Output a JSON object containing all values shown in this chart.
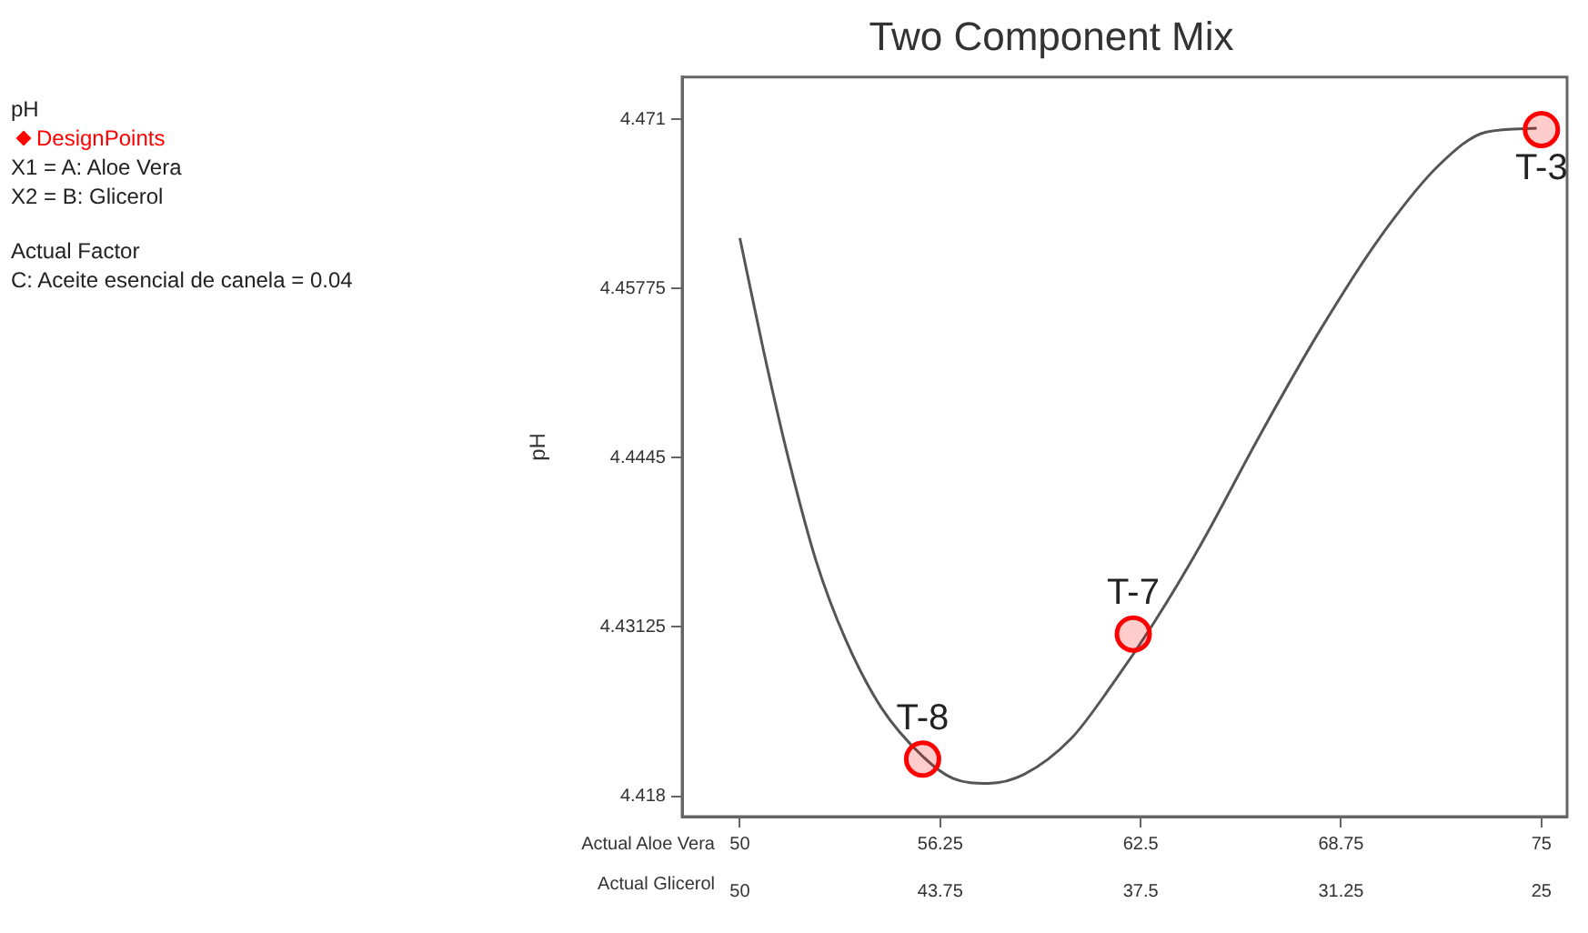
{
  "chart_data": {
    "type": "line",
    "title": "Two Component Mix",
    "xlabel": "Actual Aloe Vera",
    "x2label": "Actual Glicerol",
    "ylabel": "pH",
    "annotations": [
      "pH",
      "X1 = A: Aloe Vera",
      "X2 = B: Glicerol",
      "Actual Factor",
      "C: Aceite esencial de canela = 0.04",
      {
        "text": "T-8",
        "x": 55.7,
        "y": 4.4209
      },
      {
        "text": "T-7",
        "x": 62.27,
        "y": 4.4307
      },
      {
        "text": "T-3",
        "x": 75,
        "y": 4.4702
      }
    ],
    "xlim": [
      48.2,
      75.8
    ],
    "xticks": [
      50,
      56.25,
      62.5,
      68.75,
      75
    ],
    "x2lim": [
      51.8,
      24.2
    ],
    "x2ticks": [
      50,
      43.75,
      37.5,
      31.25,
      25
    ],
    "ylim": [
      4.4164,
      4.4743
    ],
    "yticks": [
      4.418,
      4.43125,
      4.4445,
      4.45775,
      4.471
    ],
    "grid": false,
    "legend": "left",
    "line_style": "solid",
    "series": [
      {
        "color": "#555555",
        "marker": "none",
        "x": [
          50,
          50.72,
          51.46,
          52.38,
          53.31,
          54.42,
          55.71,
          56.64,
          57.75,
          58.86,
          60.33,
          61.63,
          62.92,
          64.4,
          66.25,
          68.1,
          69.95,
          71.8,
          73.28,
          74.85
        ],
        "values": [
          4.4617,
          4.4531,
          4.445,
          4.4364,
          4.4302,
          4.4249,
          4.4211,
          4.4194,
          4.419,
          4.4197,
          4.4225,
          4.4268,
          4.4316,
          4.4378,
          4.4464,
          4.4545,
          4.4617,
          4.4674,
          4.47,
          4.4703
        ]
      },
      {
        "type": "scatter",
        "name": "DesignPoints",
        "color": "#ff0000",
        "marker": "circle",
        "x": [
          55.7,
          62.27,
          75
        ],
        "values": [
          4.4209,
          4.4307,
          4.4702
        ]
      }
    ]
  }
}
